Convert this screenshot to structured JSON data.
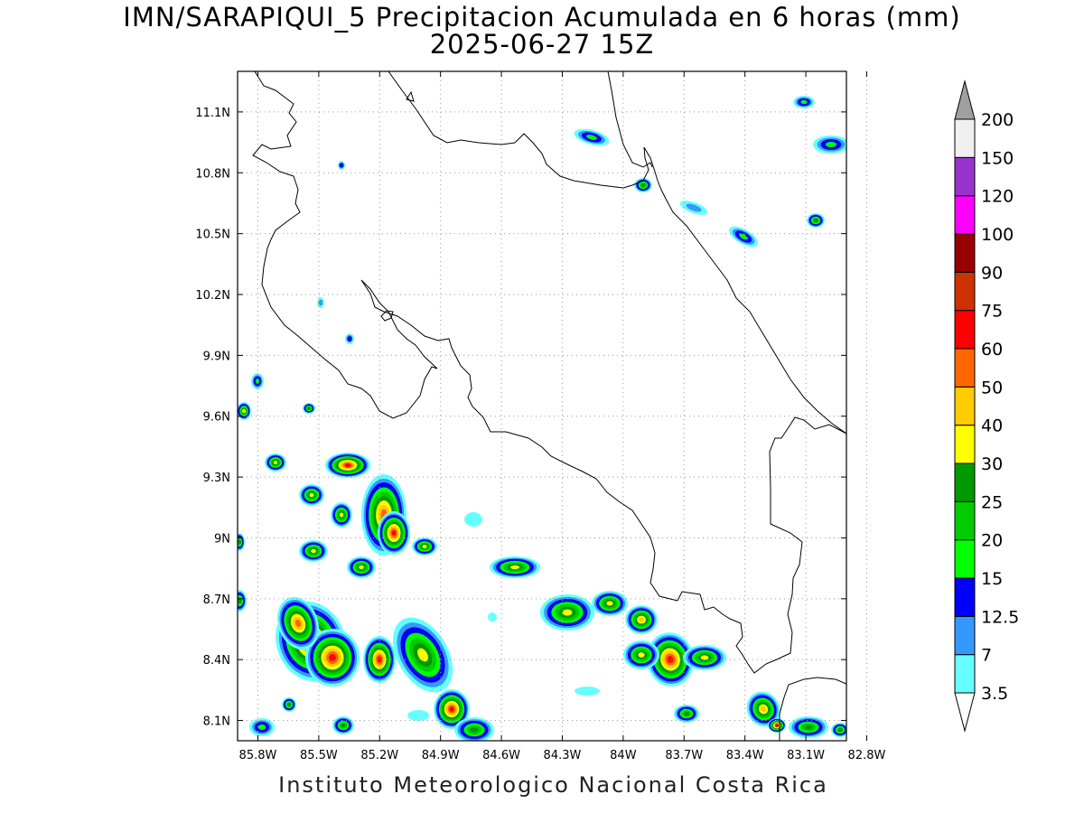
{
  "title_line1": "IMN/SARAPIQUI_5 Precipitacion Acumulada en 6 horas (mm)",
  "title_line2": "2025-06-27 15Z",
  "footer": "Instituto Meteorologico Nacional Costa Rica",
  "lon_ticks": [
    "85.8W",
    "85.5W",
    "85.2W",
    "84.9W",
    "84.6W",
    "84.3W",
    "84W",
    "83.7W",
    "83.4W",
    "83.1W",
    "82.8W"
  ],
  "lon_values": [
    -85.8,
    -85.5,
    -85.2,
    -84.9,
    -84.6,
    -84.3,
    -84.0,
    -83.7,
    -83.4,
    -83.1,
    -82.8
  ],
  "lat_ticks": [
    "11.1N",
    "10.8N",
    "10.5N",
    "10.2N",
    "9.9N",
    "9.6N",
    "9.3N",
    "9N",
    "8.7N",
    "8.4N",
    "8.1N"
  ],
  "lat_values": [
    11.1,
    10.8,
    10.5,
    10.2,
    9.9,
    9.6,
    9.3,
    9.0,
    8.7,
    8.4,
    8.1
  ],
  "extent": {
    "lon_min": -85.9,
    "lon_max": -82.9,
    "lat_min": 8.0,
    "lat_max": 11.3
  },
  "colorbar": {
    "labels": [
      "3.5",
      "7",
      "12.5",
      "15",
      "20",
      "25",
      "30",
      "40",
      "50",
      "60",
      "75",
      "90",
      "100",
      "120",
      "150",
      "200"
    ],
    "colors": [
      "#66ffff",
      "#3399ff",
      "#0000ff",
      "#00ff00",
      "#00cc00",
      "#009900",
      "#ffff00",
      "#ffcc00",
      "#ff6600",
      "#ff0000",
      "#cc3300",
      "#990000",
      "#ff00ff",
      "#9933cc",
      "#f0f0f0"
    ],
    "over_color": "#a0a0a0",
    "under_color": "#ffffff"
  },
  "grid": true
}
